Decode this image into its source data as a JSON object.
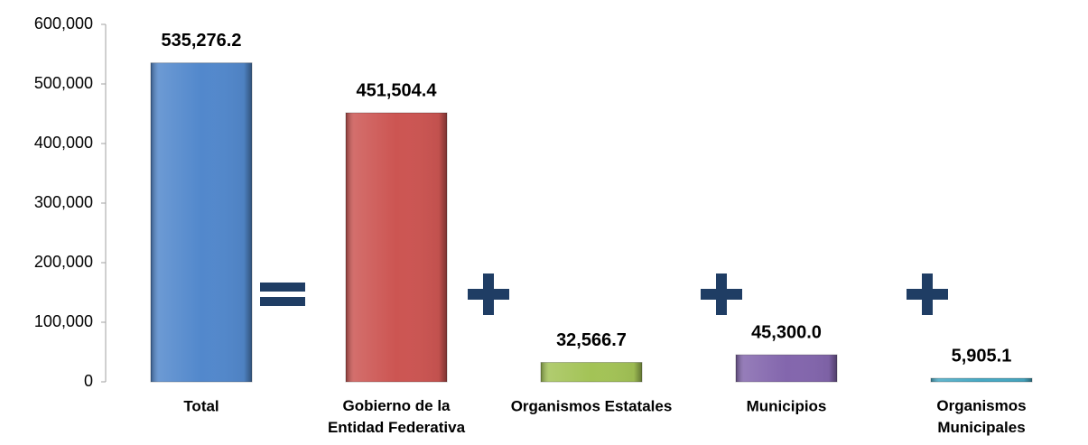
{
  "chart_data": {
    "type": "bar",
    "categories": [
      "Total",
      "Gobierno de la\nEntidad Federativa",
      "Organismos Estatales",
      "Municipios",
      "Organismos\nMunicipales"
    ],
    "values": [
      535276.2,
      451504.4,
      32566.7,
      45300.0,
      5905.1
    ],
    "value_labels": [
      "535,276.2",
      "451,504.4",
      "32,566.7",
      "45,300.0",
      "5,905.1"
    ],
    "colors": [
      "#5288cc",
      "#cc5552",
      "#a3c356",
      "#8366ad",
      "#46a9c4"
    ],
    "ylim": [
      0,
      600000
    ],
    "yticks": [
      0,
      {
        "value": 100000,
        "label": "100,000"
      },
      {
        "value": 200000,
        "label": "200,000"
      },
      {
        "value": 300000,
        "label": "300,000"
      },
      {
        "value": 400000,
        "label": "400,000"
      },
      {
        "value": 500000,
        "label": "500,000"
      },
      {
        "value": 600000,
        "label": "600,000"
      }
    ]
  }
}
